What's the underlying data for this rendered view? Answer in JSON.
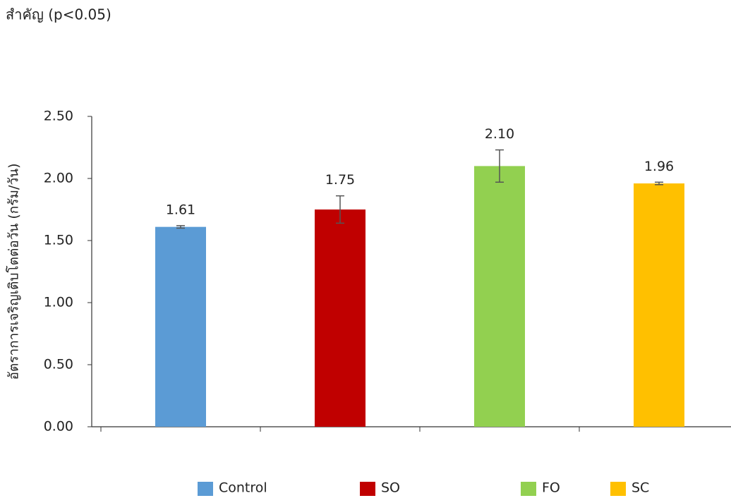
{
  "chart_data": {
    "type": "bar",
    "caption": "สำคัญ (p<0.05)",
    "y_label": "อัตราการเจริญเติบโตต่อวัน (กรัม/วัน)",
    "categories": [
      null,
      null,
      null,
      null
    ],
    "series": [
      {
        "name": "Control",
        "color": "#5b9bd5",
        "values": [
          1.61,
          null,
          null,
          null
        ],
        "errors": [
          0.01,
          null,
          null,
          null
        ],
        "value_labels": [
          "1.61",
          null,
          null,
          null
        ]
      },
      {
        "name": "SO",
        "color": "#c00000",
        "values": [
          null,
          1.75,
          null,
          null
        ],
        "errors": [
          null,
          0.11,
          null,
          null
        ],
        "value_labels": [
          null,
          "1.75",
          null,
          null
        ]
      },
      {
        "name": "FO",
        "color": "#92d050",
        "values": [
          null,
          null,
          2.1,
          null
        ],
        "errors": [
          null,
          null,
          0.13,
          null
        ],
        "value_labels": [
          null,
          null,
          "2.10",
          null
        ]
      },
      {
        "name": "SC",
        "color": "#ffc000",
        "values": [
          null,
          null,
          null,
          1.96
        ],
        "errors": [
          null,
          null,
          null,
          0.01
        ],
        "value_labels": [
          null,
          null,
          null,
          "1.96"
        ]
      }
    ],
    "ylim": [
      0,
      2.5
    ],
    "yticks": [
      {
        "value": 0,
        "label": "0.00"
      },
      {
        "value": 0.5,
        "label": "0.50"
      },
      {
        "value": 1,
        "label": "1.00"
      },
      {
        "value": 1.5,
        "label": "1.50"
      },
      {
        "value": 2,
        "label": "2.00"
      },
      {
        "value": 2.5,
        "label": "2.50"
      }
    ],
    "grid": false,
    "legend": "bottom"
  }
}
